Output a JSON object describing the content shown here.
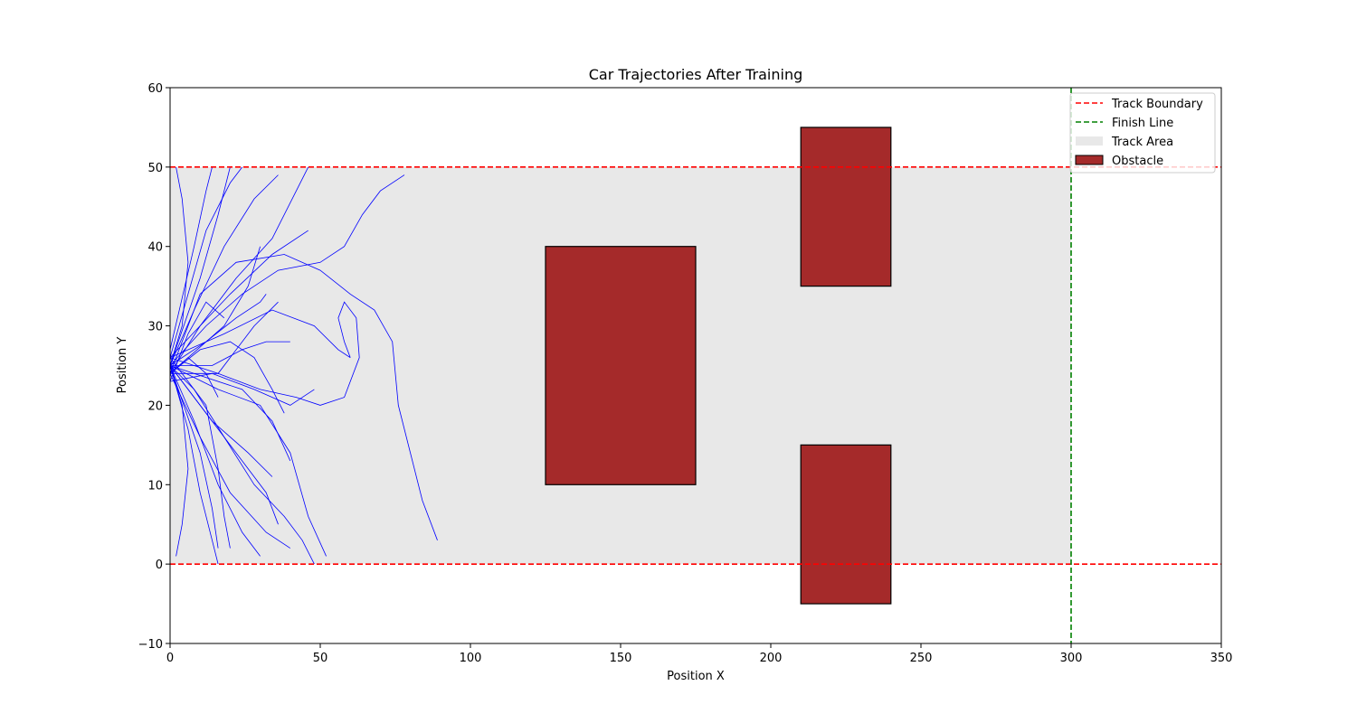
{
  "chart_data": {
    "type": "line",
    "title": "Car Trajectories After Training",
    "xlabel": "Position X",
    "ylabel": "Position Y",
    "xlim": [
      0,
      350
    ],
    "ylim": [
      -10,
      60
    ],
    "xticks": [
      0,
      50,
      100,
      150,
      200,
      250,
      300,
      350
    ],
    "yticks": [
      -10,
      0,
      10,
      20,
      30,
      40,
      50,
      60
    ],
    "grid": false,
    "legend_position": "top-right",
    "legend": [
      {
        "label": "Track Boundary",
        "kind": "dashed-line",
        "color": "#ff0000"
      },
      {
        "label": "Finish Line",
        "kind": "dashed-line",
        "color": "#008000"
      },
      {
        "label": "Track Area",
        "kind": "patch",
        "color": "#e8e8e8"
      },
      {
        "label": "Obstacle",
        "kind": "patch",
        "color": "#a52a2a"
      }
    ],
    "track_area": {
      "x": [
        0,
        300
      ],
      "y": [
        0,
        50
      ],
      "color": "#e8e8e8"
    },
    "track_boundaries": [
      0,
      50
    ],
    "finish_line_x": 300,
    "obstacles": [
      {
        "x": [
          125,
          175
        ],
        "y": [
          10,
          40
        ]
      },
      {
        "x": [
          210,
          240
        ],
        "y": [
          35,
          55
        ]
      },
      {
        "x": [
          210,
          240
        ],
        "y": [
          -5,
          15
        ]
      }
    ],
    "trajectory_color": "#0000ff",
    "trajectories": [
      [
        [
          0,
          25
        ],
        [
          8,
          32
        ],
        [
          18,
          40
        ],
        [
          28,
          46
        ],
        [
          36,
          49
        ]
      ],
      [
        [
          0,
          24
        ],
        [
          10,
          30
        ],
        [
          22,
          36
        ],
        [
          34,
          41
        ],
        [
          46,
          50
        ]
      ],
      [
        [
          0,
          26
        ],
        [
          6,
          34
        ],
        [
          12,
          42
        ],
        [
          20,
          48
        ],
        [
          24,
          50
        ]
      ],
      [
        [
          0,
          25
        ],
        [
          8,
          18
        ],
        [
          16,
          10
        ],
        [
          24,
          4
        ],
        [
          30,
          1
        ]
      ],
      [
        [
          0,
          24
        ],
        [
          10,
          16
        ],
        [
          20,
          9
        ],
        [
          32,
          4
        ],
        [
          40,
          2
        ]
      ],
      [
        [
          0,
          25
        ],
        [
          6,
          17
        ],
        [
          10,
          9
        ],
        [
          14,
          3
        ],
        [
          16,
          0
        ]
      ],
      [
        [
          0,
          23
        ],
        [
          14,
          24
        ],
        [
          28,
          22
        ],
        [
          40,
          20
        ],
        [
          48,
          22
        ]
      ],
      [
        [
          0,
          25
        ],
        [
          12,
          28
        ],
        [
          22,
          31
        ],
        [
          30,
          33
        ],
        [
          32,
          34
        ]
      ],
      [
        [
          0,
          26
        ],
        [
          18,
          29
        ],
        [
          34,
          32
        ],
        [
          48,
          30
        ],
        [
          56,
          27
        ],
        [
          60,
          26
        ]
      ],
      [
        [
          0,
          25
        ],
        [
          16,
          22
        ],
        [
          30,
          20
        ],
        [
          40,
          14
        ],
        [
          46,
          6
        ],
        [
          52,
          1
        ]
      ],
      [
        [
          0,
          24
        ],
        [
          10,
          34
        ],
        [
          22,
          38
        ],
        [
          38,
          39
        ],
        [
          50,
          37
        ],
        [
          60,
          34
        ],
        [
          68,
          32
        ],
        [
          74,
          28
        ],
        [
          76,
          20
        ],
        [
          80,
          14
        ],
        [
          84,
          8
        ],
        [
          89,
          3
        ]
      ],
      [
        [
          0,
          25
        ],
        [
          12,
          30
        ],
        [
          24,
          34
        ],
        [
          36,
          37
        ],
        [
          50,
          38
        ],
        [
          58,
          40
        ],
        [
          64,
          44
        ],
        [
          70,
          47
        ],
        [
          78,
          49
        ]
      ],
      [
        [
          0,
          26
        ],
        [
          16,
          24
        ],
        [
          30,
          22
        ],
        [
          42,
          21
        ],
        [
          50,
          20
        ],
        [
          58,
          21
        ],
        [
          63,
          26
        ],
        [
          62,
          31
        ],
        [
          58,
          33
        ],
        [
          56,
          31
        ],
        [
          58,
          28
        ],
        [
          60,
          26
        ]
      ],
      [
        [
          0,
          25
        ],
        [
          8,
          22
        ],
        [
          18,
          16
        ],
        [
          28,
          10
        ],
        [
          38,
          6
        ],
        [
          44,
          3
        ],
        [
          48,
          0
        ]
      ],
      [
        [
          0,
          25
        ],
        [
          4,
          30
        ],
        [
          6,
          38
        ],
        [
          4,
          46
        ],
        [
          2,
          50
        ]
      ],
      [
        [
          0,
          25
        ],
        [
          4,
          20
        ],
        [
          6,
          12
        ],
        [
          4,
          5
        ],
        [
          2,
          1
        ]
      ],
      [
        [
          0,
          24
        ],
        [
          10,
          27
        ],
        [
          20,
          28
        ],
        [
          28,
          26
        ],
        [
          34,
          22
        ],
        [
          38,
          19
        ]
      ],
      [
        [
          0,
          25
        ],
        [
          14,
          25
        ],
        [
          24,
          27
        ],
        [
          32,
          28
        ],
        [
          40,
          28
        ]
      ],
      [
        [
          0,
          26
        ],
        [
          20,
          34
        ],
        [
          34,
          39
        ],
        [
          46,
          42
        ]
      ],
      [
        [
          0,
          25
        ],
        [
          22,
          14
        ],
        [
          32,
          9
        ],
        [
          36,
          5
        ]
      ],
      [
        [
          0,
          24
        ],
        [
          6,
          26
        ],
        [
          12,
          24
        ],
        [
          16,
          21
        ]
      ],
      [
        [
          0,
          25
        ],
        [
          10,
          36
        ],
        [
          16,
          44
        ],
        [
          20,
          50
        ]
      ],
      [
        [
          0,
          26
        ],
        [
          12,
          20
        ],
        [
          16,
          12
        ],
        [
          18,
          6
        ],
        [
          20,
          2
        ]
      ],
      [
        [
          0,
          24
        ],
        [
          18,
          30
        ],
        [
          26,
          35
        ],
        [
          30,
          40
        ]
      ],
      [
        [
          0,
          25
        ],
        [
          24,
          22
        ],
        [
          34,
          18
        ],
        [
          40,
          13
        ]
      ],
      [
        [
          0,
          23
        ],
        [
          6,
          29
        ],
        [
          12,
          33
        ],
        [
          18,
          31
        ]
      ],
      [
        [
          0,
          25
        ],
        [
          10,
          14
        ],
        [
          14,
          7
        ],
        [
          16,
          2
        ]
      ],
      [
        [
          0,
          27
        ],
        [
          8,
          40
        ],
        [
          12,
          47
        ],
        [
          14,
          50
        ]
      ],
      [
        [
          0,
          25
        ],
        [
          14,
          18
        ],
        [
          26,
          14
        ],
        [
          34,
          11
        ]
      ],
      [
        [
          0,
          24
        ],
        [
          16,
          24
        ],
        [
          28,
          30
        ],
        [
          36,
          33
        ]
      ]
    ]
  }
}
